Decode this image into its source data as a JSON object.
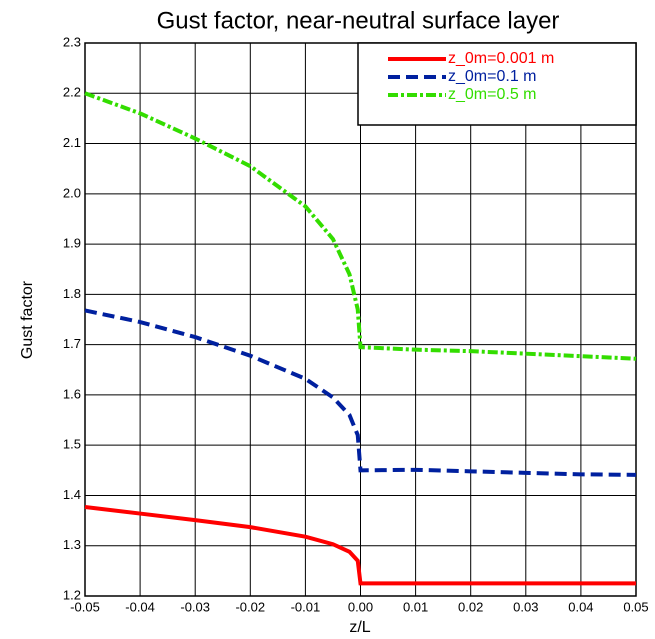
{
  "chart_data": {
    "type": "line",
    "title": "Gust factor, near-neutral surface layer",
    "x_label": "z/L",
    "y_label": "Gust factor",
    "x": [
      -0.05,
      -0.04,
      -0.03,
      -0.02,
      -0.01,
      -0.005,
      -0.002,
      -0.0005,
      0,
      0.01,
      0.02,
      0.03,
      0.04,
      0.05
    ],
    "series": [
      {
        "name": "z_0m=0.001 m",
        "color": "#ff0000",
        "values": [
          1.377,
          1.364,
          1.351,
          1.337,
          1.318,
          1.303,
          1.288,
          1.27,
          1.225,
          1.225,
          1.225,
          1.225,
          1.225,
          1.225
        ]
      },
      {
        "name": "z_0m=0.1 m",
        "color": "#00209f",
        "values": [
          1.768,
          1.745,
          1.715,
          1.678,
          1.632,
          1.595,
          1.56,
          1.52,
          1.45,
          1.451,
          1.448,
          1.445,
          1.442,
          1.441
        ]
      },
      {
        "name": "z_0m=0.5 m",
        "color": "#33dd00",
        "values": [
          2.2,
          2.16,
          2.11,
          2.055,
          1.975,
          1.91,
          1.84,
          1.77,
          1.695,
          1.69,
          1.687,
          1.682,
          1.677,
          1.672
        ]
      }
    ],
    "xlim": [
      -0.05,
      0.05
    ],
    "xticks": [
      -0.05,
      -0.04,
      -0.03,
      -0.02,
      -0.01,
      {
        "value": 0,
        "label": "0.00"
      },
      0.01,
      0.02,
      0.03,
      0.04,
      0.05
    ],
    "ylim": [
      1.2,
      2.3
    ],
    "yticks": [
      1.2,
      1.3,
      1.4,
      1.5,
      1.6,
      1.7,
      1.8,
      1.9,
      {
        "value": 2,
        "label": "2.0"
      },
      2.1,
      2.2,
      2.3
    ],
    "grid": true,
    "legend": "upper right"
  }
}
